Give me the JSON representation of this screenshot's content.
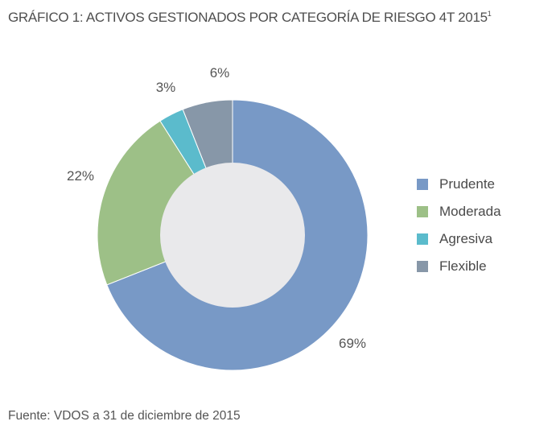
{
  "title": {
    "text": "GRÁFICO 1: ACTIVOS GESTIONADOS POR CATEGORÍA DE RIESGO 4T 2015",
    "footnote": "1"
  },
  "source": "Fuente: VDOS a 31 de diciembre de 2015",
  "chart_data": {
    "type": "pie",
    "donut": true,
    "title": "GRÁFICO 1: ACTIVOS GESTIONADOS POR CATEGORÍA DE RIESGO 4T 2015",
    "unit": "%",
    "categories": [
      "Prudente",
      "Moderada",
      "Agresiva",
      "Flexible"
    ],
    "values": [
      69,
      22,
      3,
      6
    ],
    "labels": [
      "69%",
      "22%",
      "3%",
      "6%"
    ],
    "colors": [
      "#7899c6",
      "#9dc087",
      "#5bbbcc",
      "#8797a8"
    ],
    "center_color": "#e9e9eb",
    "start_angle_deg": 0,
    "direction": "clockwise",
    "legend_position": "right"
  },
  "legend": {
    "items": [
      {
        "label": "Prudente",
        "color": "#7899c6"
      },
      {
        "label": "Moderada",
        "color": "#9dc087"
      },
      {
        "label": "Agresiva",
        "color": "#5bbbcc"
      },
      {
        "label": "Flexible",
        "color": "#8797a8"
      }
    ]
  }
}
